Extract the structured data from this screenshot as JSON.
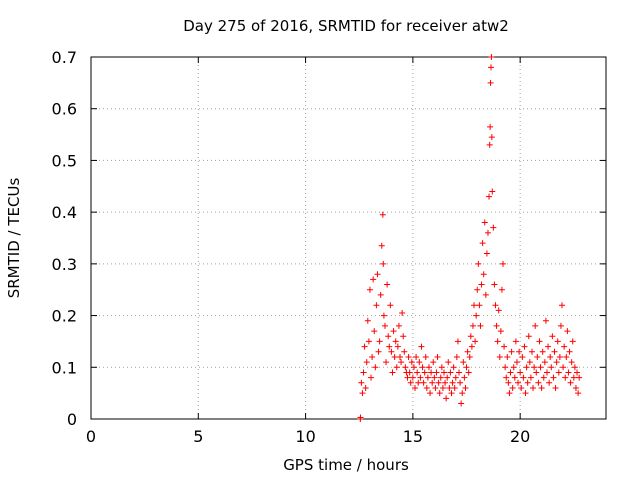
{
  "chart_data": {
    "type": "scatter",
    "title": "Day 275 of 2016, SRMTID for receiver atw2",
    "xlabel": "GPS time / hours",
    "ylabel": "SRMTID / TECUs",
    "xlim": [
      0,
      24
    ],
    "ylim": [
      0,
      0.7
    ],
    "x_ticks": [
      0,
      5,
      10,
      15,
      20
    ],
    "x_tick_labels": [
      "0",
      "5",
      "10",
      "15",
      "20"
    ],
    "y_ticks": [
      0,
      0.1,
      0.2,
      0.3,
      0.4,
      0.5,
      0.6,
      0.7
    ],
    "y_tick_labels": [
      "0",
      "0.1",
      "0.2",
      "0.3",
      "0.4",
      "0.5",
      "0.6",
      "0.7"
    ],
    "grid": true,
    "marker": "plus",
    "color": "#ff0000",
    "series": [
      {
        "name": "SRMTID",
        "points": [
          [
            12.55,
            0.0
          ],
          [
            12.56,
            0.003
          ],
          [
            12.6,
            0.07
          ],
          [
            12.65,
            0.05
          ],
          [
            12.7,
            0.09
          ],
          [
            12.75,
            0.14
          ],
          [
            12.8,
            0.06
          ],
          [
            12.85,
            0.11
          ],
          [
            12.9,
            0.19
          ],
          [
            12.95,
            0.15
          ],
          [
            13.0,
            0.25
          ],
          [
            13.05,
            0.08
          ],
          [
            13.1,
            0.12
          ],
          [
            13.15,
            0.27
          ],
          [
            13.2,
            0.17
          ],
          [
            13.25,
            0.1
          ],
          [
            13.3,
            0.22
          ],
          [
            13.35,
            0.28
          ],
          [
            13.4,
            0.13
          ],
          [
            13.45,
            0.15
          ],
          [
            13.5,
            0.24
          ],
          [
            13.55,
            0.335
          ],
          [
            13.6,
            0.395
          ],
          [
            13.62,
            0.3
          ],
          [
            13.65,
            0.2
          ],
          [
            13.7,
            0.18
          ],
          [
            13.75,
            0.11
          ],
          [
            13.8,
            0.26
          ],
          [
            13.85,
            0.16
          ],
          [
            13.9,
            0.14
          ],
          [
            13.95,
            0.22
          ],
          [
            14.0,
            0.13
          ],
          [
            14.05,
            0.09
          ],
          [
            14.1,
            0.17
          ],
          [
            14.15,
            0.12
          ],
          [
            14.2,
            0.15
          ],
          [
            14.25,
            0.1
          ],
          [
            14.3,
            0.14
          ],
          [
            14.35,
            0.18
          ],
          [
            14.4,
            0.12
          ],
          [
            14.45,
            0.11
          ],
          [
            14.5,
            0.205
          ],
          [
            14.55,
            0.16
          ],
          [
            14.6,
            0.13
          ],
          [
            14.65,
            0.1
          ],
          [
            14.7,
            0.09
          ],
          [
            14.75,
            0.08
          ],
          [
            14.8,
            0.12
          ],
          [
            14.85,
            0.09
          ],
          [
            14.9,
            0.07
          ],
          [
            14.95,
            0.11
          ],
          [
            15.0,
            0.08
          ],
          [
            15.05,
            0.1
          ],
          [
            15.1,
            0.06
          ],
          [
            15.15,
            0.12
          ],
          [
            15.2,
            0.09
          ],
          [
            15.25,
            0.07
          ],
          [
            15.3,
            0.11
          ],
          [
            15.35,
            0.08
          ],
          [
            15.4,
            0.14
          ],
          [
            15.45,
            0.1
          ],
          [
            15.5,
            0.07
          ],
          [
            15.55,
            0.09
          ],
          [
            15.6,
            0.12
          ],
          [
            15.65,
            0.06
          ],
          [
            15.7,
            0.08
          ],
          [
            15.75,
            0.1
          ],
          [
            15.8,
            0.05
          ],
          [
            15.85,
            0.09
          ],
          [
            15.9,
            0.07
          ],
          [
            15.95,
            0.11
          ],
          [
            16.0,
            0.08
          ],
          [
            16.05,
            0.06
          ],
          [
            16.1,
            0.09
          ],
          [
            16.15,
            0.12
          ],
          [
            16.2,
            0.07
          ],
          [
            16.25,
            0.05
          ],
          [
            16.3,
            0.08
          ],
          [
            16.35,
            0.1
          ],
          [
            16.4,
            0.06
          ],
          [
            16.45,
            0.09
          ],
          [
            16.5,
            0.07
          ],
          [
            16.55,
            0.04
          ],
          [
            16.6,
            0.08
          ],
          [
            16.65,
            0.11
          ],
          [
            16.7,
            0.06
          ],
          [
            16.75,
            0.09
          ],
          [
            16.8,
            0.05
          ],
          [
            16.85,
            0.07
          ],
          [
            16.9,
            0.1
          ],
          [
            16.95,
            0.06
          ],
          [
            17.0,
            0.08
          ],
          [
            17.05,
            0.12
          ],
          [
            17.1,
            0.15
          ],
          [
            17.15,
            0.09
          ],
          [
            17.2,
            0.07
          ],
          [
            17.25,
            0.03
          ],
          [
            17.3,
            0.05
          ],
          [
            17.35,
            0.11
          ],
          [
            17.4,
            0.08
          ],
          [
            17.45,
            0.06
          ],
          [
            17.5,
            0.1
          ],
          [
            17.55,
            0.13
          ],
          [
            17.6,
            0.09
          ],
          [
            17.65,
            0.12
          ],
          [
            17.7,
            0.16
          ],
          [
            17.75,
            0.14
          ],
          [
            17.8,
            0.18
          ],
          [
            17.85,
            0.22
          ],
          [
            17.9,
            0.15
          ],
          [
            17.95,
            0.2
          ],
          [
            18.0,
            0.25
          ],
          [
            18.05,
            0.3
          ],
          [
            18.1,
            0.22
          ],
          [
            18.15,
            0.18
          ],
          [
            18.2,
            0.26
          ],
          [
            18.25,
            0.34
          ],
          [
            18.3,
            0.28
          ],
          [
            18.35,
            0.38
          ],
          [
            18.4,
            0.24
          ],
          [
            18.45,
            0.32
          ],
          [
            18.5,
            0.36
          ],
          [
            18.55,
            0.43
          ],
          [
            18.58,
            0.53
          ],
          [
            18.6,
            0.565
          ],
          [
            18.62,
            0.65
          ],
          [
            18.64,
            0.68
          ],
          [
            18.66,
            0.7
          ],
          [
            18.68,
            0.545
          ],
          [
            18.7,
            0.44
          ],
          [
            18.75,
            0.37
          ],
          [
            18.8,
            0.26
          ],
          [
            18.85,
            0.22
          ],
          [
            18.9,
            0.18
          ],
          [
            18.95,
            0.15
          ],
          [
            19.0,
            0.21
          ],
          [
            19.05,
            0.12
          ],
          [
            19.1,
            0.17
          ],
          [
            19.15,
            0.25
          ],
          [
            19.2,
            0.3
          ],
          [
            19.25,
            0.14
          ],
          [
            19.3,
            0.1
          ],
          [
            19.35,
            0.08
          ],
          [
            19.4,
            0.12
          ],
          [
            19.45,
            0.07
          ],
          [
            19.5,
            0.05
          ],
          [
            19.55,
            0.09
          ],
          [
            19.6,
            0.13
          ],
          [
            19.65,
            0.06
          ],
          [
            19.7,
            0.1
          ],
          [
            19.75,
            0.08
          ],
          [
            19.8,
            0.15
          ],
          [
            19.85,
            0.11
          ],
          [
            19.9,
            0.07
          ],
          [
            19.95,
            0.13
          ],
          [
            20.0,
            0.09
          ],
          [
            20.05,
            0.06
          ],
          [
            20.1,
            0.12
          ],
          [
            20.15,
            0.08
          ],
          [
            20.2,
            0.14
          ],
          [
            20.25,
            0.05
          ],
          [
            20.3,
            0.1
          ],
          [
            20.35,
            0.07
          ],
          [
            20.4,
            0.16
          ],
          [
            20.45,
            0.11
          ],
          [
            20.5,
            0.08
          ],
          [
            20.55,
            0.13
          ],
          [
            20.6,
            0.06
          ],
          [
            20.65,
            0.1
          ],
          [
            20.7,
            0.18
          ],
          [
            20.75,
            0.09
          ],
          [
            20.8,
            0.12
          ],
          [
            20.85,
            0.07
          ],
          [
            20.9,
            0.15
          ],
          [
            20.95,
            0.1
          ],
          [
            21.0,
            0.06
          ],
          [
            21.05,
            0.13
          ],
          [
            21.1,
            0.08
          ],
          [
            21.15,
            0.11
          ],
          [
            21.2,
            0.19
          ],
          [
            21.25,
            0.09
          ],
          [
            21.3,
            0.14
          ],
          [
            21.35,
            0.07
          ],
          [
            21.4,
            0.12
          ],
          [
            21.45,
            0.1
          ],
          [
            21.5,
            0.16
          ],
          [
            21.55,
            0.08
          ],
          [
            21.6,
            0.13
          ],
          [
            21.65,
            0.06
          ],
          [
            21.7,
            0.11
          ],
          [
            21.75,
            0.15
          ],
          [
            21.8,
            0.09
          ],
          [
            21.85,
            0.12
          ],
          [
            21.9,
            0.18
          ],
          [
            21.95,
            0.22
          ],
          [
            22.0,
            0.1
          ],
          [
            22.05,
            0.14
          ],
          [
            22.1,
            0.08
          ],
          [
            22.15,
            0.12
          ],
          [
            22.2,
            0.17
          ],
          [
            22.25,
            0.09
          ],
          [
            22.3,
            0.13
          ],
          [
            22.35,
            0.07
          ],
          [
            22.4,
            0.11
          ],
          [
            22.45,
            0.15
          ],
          [
            22.5,
            0.08
          ],
          [
            22.55,
            0.1
          ],
          [
            22.6,
            0.06
          ],
          [
            22.65,
            0.09
          ],
          [
            22.7,
            0.05
          ],
          [
            22.75,
            0.08
          ]
        ]
      }
    ]
  }
}
